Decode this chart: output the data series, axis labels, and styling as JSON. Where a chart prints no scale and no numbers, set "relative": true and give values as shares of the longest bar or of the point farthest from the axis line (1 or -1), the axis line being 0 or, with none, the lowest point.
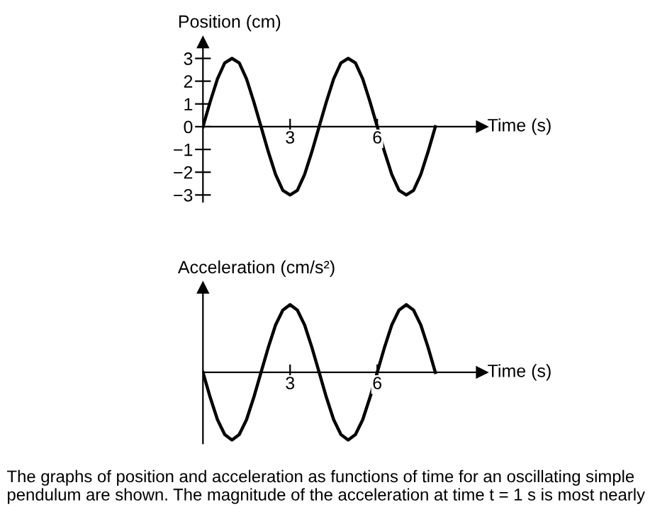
{
  "chart_data": [
    {
      "type": "line",
      "xlabel": "Time (s)",
      "ylabel": "Position (cm)",
      "xlim": [
        0,
        9.6
      ],
      "ylim": [
        -3.3,
        3.7
      ],
      "xticks": [
        3,
        6
      ],
      "yticks": [
        -3,
        -2,
        -1,
        0,
        1,
        2,
        3
      ],
      "grid": false,
      "legend": false,
      "marker": "none",
      "line_style": "solid",
      "x": [
        0,
        0.25,
        0.5,
        0.75,
        1,
        1.25,
        1.5,
        1.75,
        2,
        2.25,
        2.5,
        2.75,
        3,
        3.25,
        3.5,
        3.75,
        4,
        4.25,
        4.5,
        4.75,
        5,
        5.25,
        5.5,
        5.75,
        6,
        6.25,
        6.5,
        6.75,
        7,
        7.25,
        7.5,
        7.75,
        8
      ],
      "series": [
        {
          "color": "#000000",
          "values": [
            0,
            1.1,
            2.1,
            2.8,
            3,
            2.8,
            2.1,
            1.1,
            0,
            -1.1,
            -2.1,
            -2.8,
            -3,
            -2.8,
            -2.1,
            -1.1,
            0,
            1.1,
            2.1,
            2.8,
            3,
            2.8,
            2.1,
            1.1,
            0,
            -1.1,
            -2.1,
            -2.8,
            -3,
            -2.8,
            -2.1,
            -1.1,
            0
          ]
        }
      ]
    },
    {
      "type": "line",
      "xlabel": "Time (s)",
      "ylabel": "Acceleration (cm/s²)",
      "relative": true,
      "xlim": [
        0,
        9.6
      ],
      "xticks": [
        3,
        6
      ],
      "grid": false,
      "legend": false,
      "marker": "none",
      "line_style": "solid",
      "x": [
        0,
        0.25,
        0.5,
        0.75,
        1,
        1.25,
        1.5,
        1.75,
        2,
        2.25,
        2.5,
        2.75,
        3,
        3.25,
        3.5,
        3.75,
        4,
        4.25,
        4.5,
        4.75,
        5,
        5.25,
        5.5,
        5.75,
        6,
        6.25,
        6.5,
        6.75,
        7,
        7.25,
        7.5,
        7.75,
        8
      ],
      "series": [
        {
          "color": "#000000",
          "values": [
            0,
            -0.37,
            -0.7,
            -0.92,
            -1,
            -0.92,
            -0.7,
            -0.37,
            0,
            0.37,
            0.7,
            0.92,
            1,
            0.92,
            0.7,
            0.37,
            0,
            -0.37,
            -0.7,
            -0.92,
            -1,
            -0.92,
            -0.7,
            -0.37,
            0,
            0.37,
            0.7,
            0.92,
            1,
            0.92,
            0.7,
            0.37,
            0
          ]
        }
      ],
      "annotations": [
        "The graphs of position and acceleration as functions of time for an oscillating simple pendulum are shown. The magnitude of the acceleration at time t = 1 s is most nearly"
      ]
    }
  ]
}
